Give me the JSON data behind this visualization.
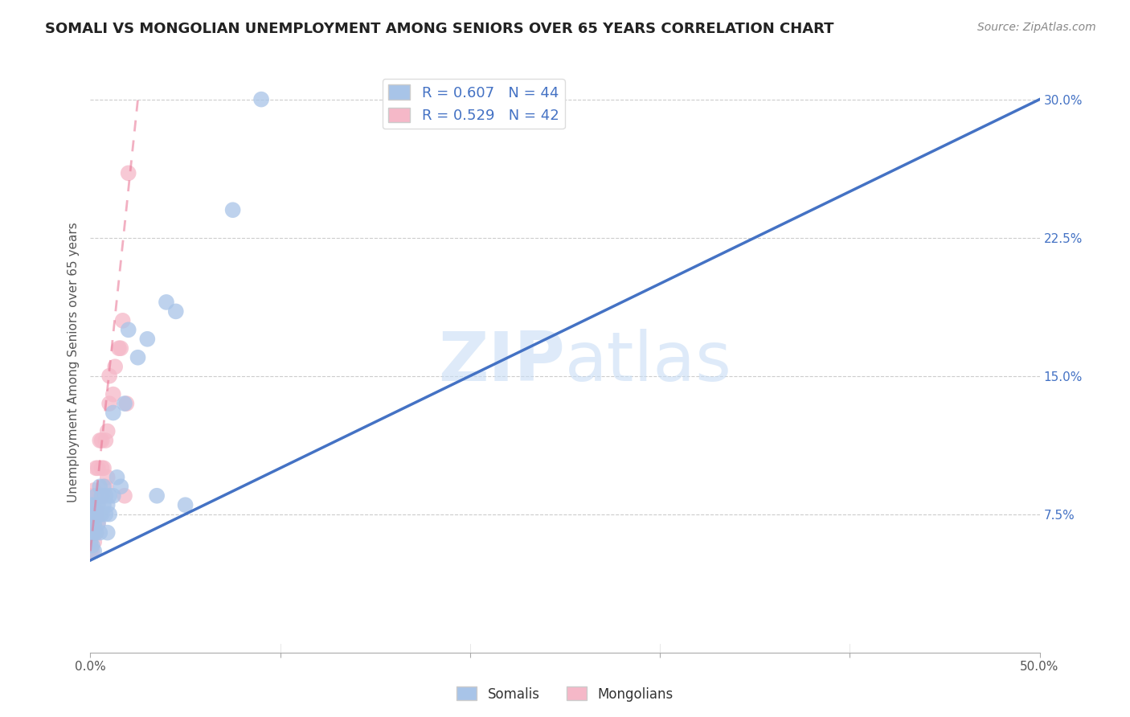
{
  "title": "SOMALI VS MONGOLIAN UNEMPLOYMENT AMONG SENIORS OVER 65 YEARS CORRELATION CHART",
  "source": "Source: ZipAtlas.com",
  "ylabel": "Unemployment Among Seniors over 65 years",
  "xlim": [
    0.0,
    0.5
  ],
  "ylim": [
    0.0,
    0.315
  ],
  "somali_R": 0.607,
  "somali_N": 44,
  "mongolian_R": 0.529,
  "mongolian_N": 42,
  "somali_color": "#a8c4e8",
  "mongolian_color": "#f5b8c8",
  "somali_line_color": "#4472c4",
  "mongolian_line_color": "#e87090",
  "watermark_color": "#c8ddf5",
  "somali_x": [
    0.0,
    0.0,
    0.0,
    0.0,
    0.0,
    0.001,
    0.001,
    0.001,
    0.002,
    0.002,
    0.002,
    0.002,
    0.003,
    0.003,
    0.003,
    0.004,
    0.004,
    0.005,
    0.005,
    0.005,
    0.006,
    0.006,
    0.007,
    0.007,
    0.008,
    0.008,
    0.009,
    0.009,
    0.01,
    0.01,
    0.012,
    0.012,
    0.014,
    0.016,
    0.018,
    0.02,
    0.025,
    0.03,
    0.035,
    0.04,
    0.045,
    0.05,
    0.075,
    0.09
  ],
  "somali_y": [
    0.06,
    0.065,
    0.07,
    0.075,
    0.08,
    0.058,
    0.065,
    0.072,
    0.055,
    0.065,
    0.07,
    0.08,
    0.065,
    0.075,
    0.085,
    0.07,
    0.08,
    0.065,
    0.075,
    0.09,
    0.075,
    0.085,
    0.08,
    0.09,
    0.075,
    0.085,
    0.065,
    0.08,
    0.075,
    0.085,
    0.085,
    0.13,
    0.095,
    0.09,
    0.135,
    0.175,
    0.16,
    0.17,
    0.085,
    0.19,
    0.185,
    0.08,
    0.24,
    0.3
  ],
  "mongolian_x": [
    0.0,
    0.0,
    0.0,
    0.0,
    0.0,
    0.0,
    0.001,
    0.001,
    0.001,
    0.001,
    0.002,
    0.002,
    0.002,
    0.002,
    0.003,
    0.003,
    0.003,
    0.004,
    0.004,
    0.004,
    0.005,
    0.005,
    0.005,
    0.006,
    0.006,
    0.006,
    0.007,
    0.007,
    0.008,
    0.008,
    0.009,
    0.009,
    0.01,
    0.01,
    0.012,
    0.013,
    0.015,
    0.016,
    0.017,
    0.018,
    0.019,
    0.02
  ],
  "mongolian_y": [
    0.055,
    0.06,
    0.063,
    0.065,
    0.068,
    0.075,
    0.055,
    0.065,
    0.075,
    0.085,
    0.06,
    0.068,
    0.078,
    0.088,
    0.065,
    0.075,
    0.1,
    0.07,
    0.08,
    0.1,
    0.075,
    0.085,
    0.115,
    0.085,
    0.1,
    0.115,
    0.085,
    0.1,
    0.09,
    0.115,
    0.095,
    0.12,
    0.135,
    0.15,
    0.14,
    0.155,
    0.165,
    0.165,
    0.18,
    0.085,
    0.135,
    0.26
  ],
  "blue_line_x": [
    0.0,
    0.5
  ],
  "blue_line_y": [
    0.05,
    0.3
  ],
  "pink_line_x": [
    0.0,
    0.025
  ],
  "pink_line_y": [
    0.055,
    0.3
  ]
}
